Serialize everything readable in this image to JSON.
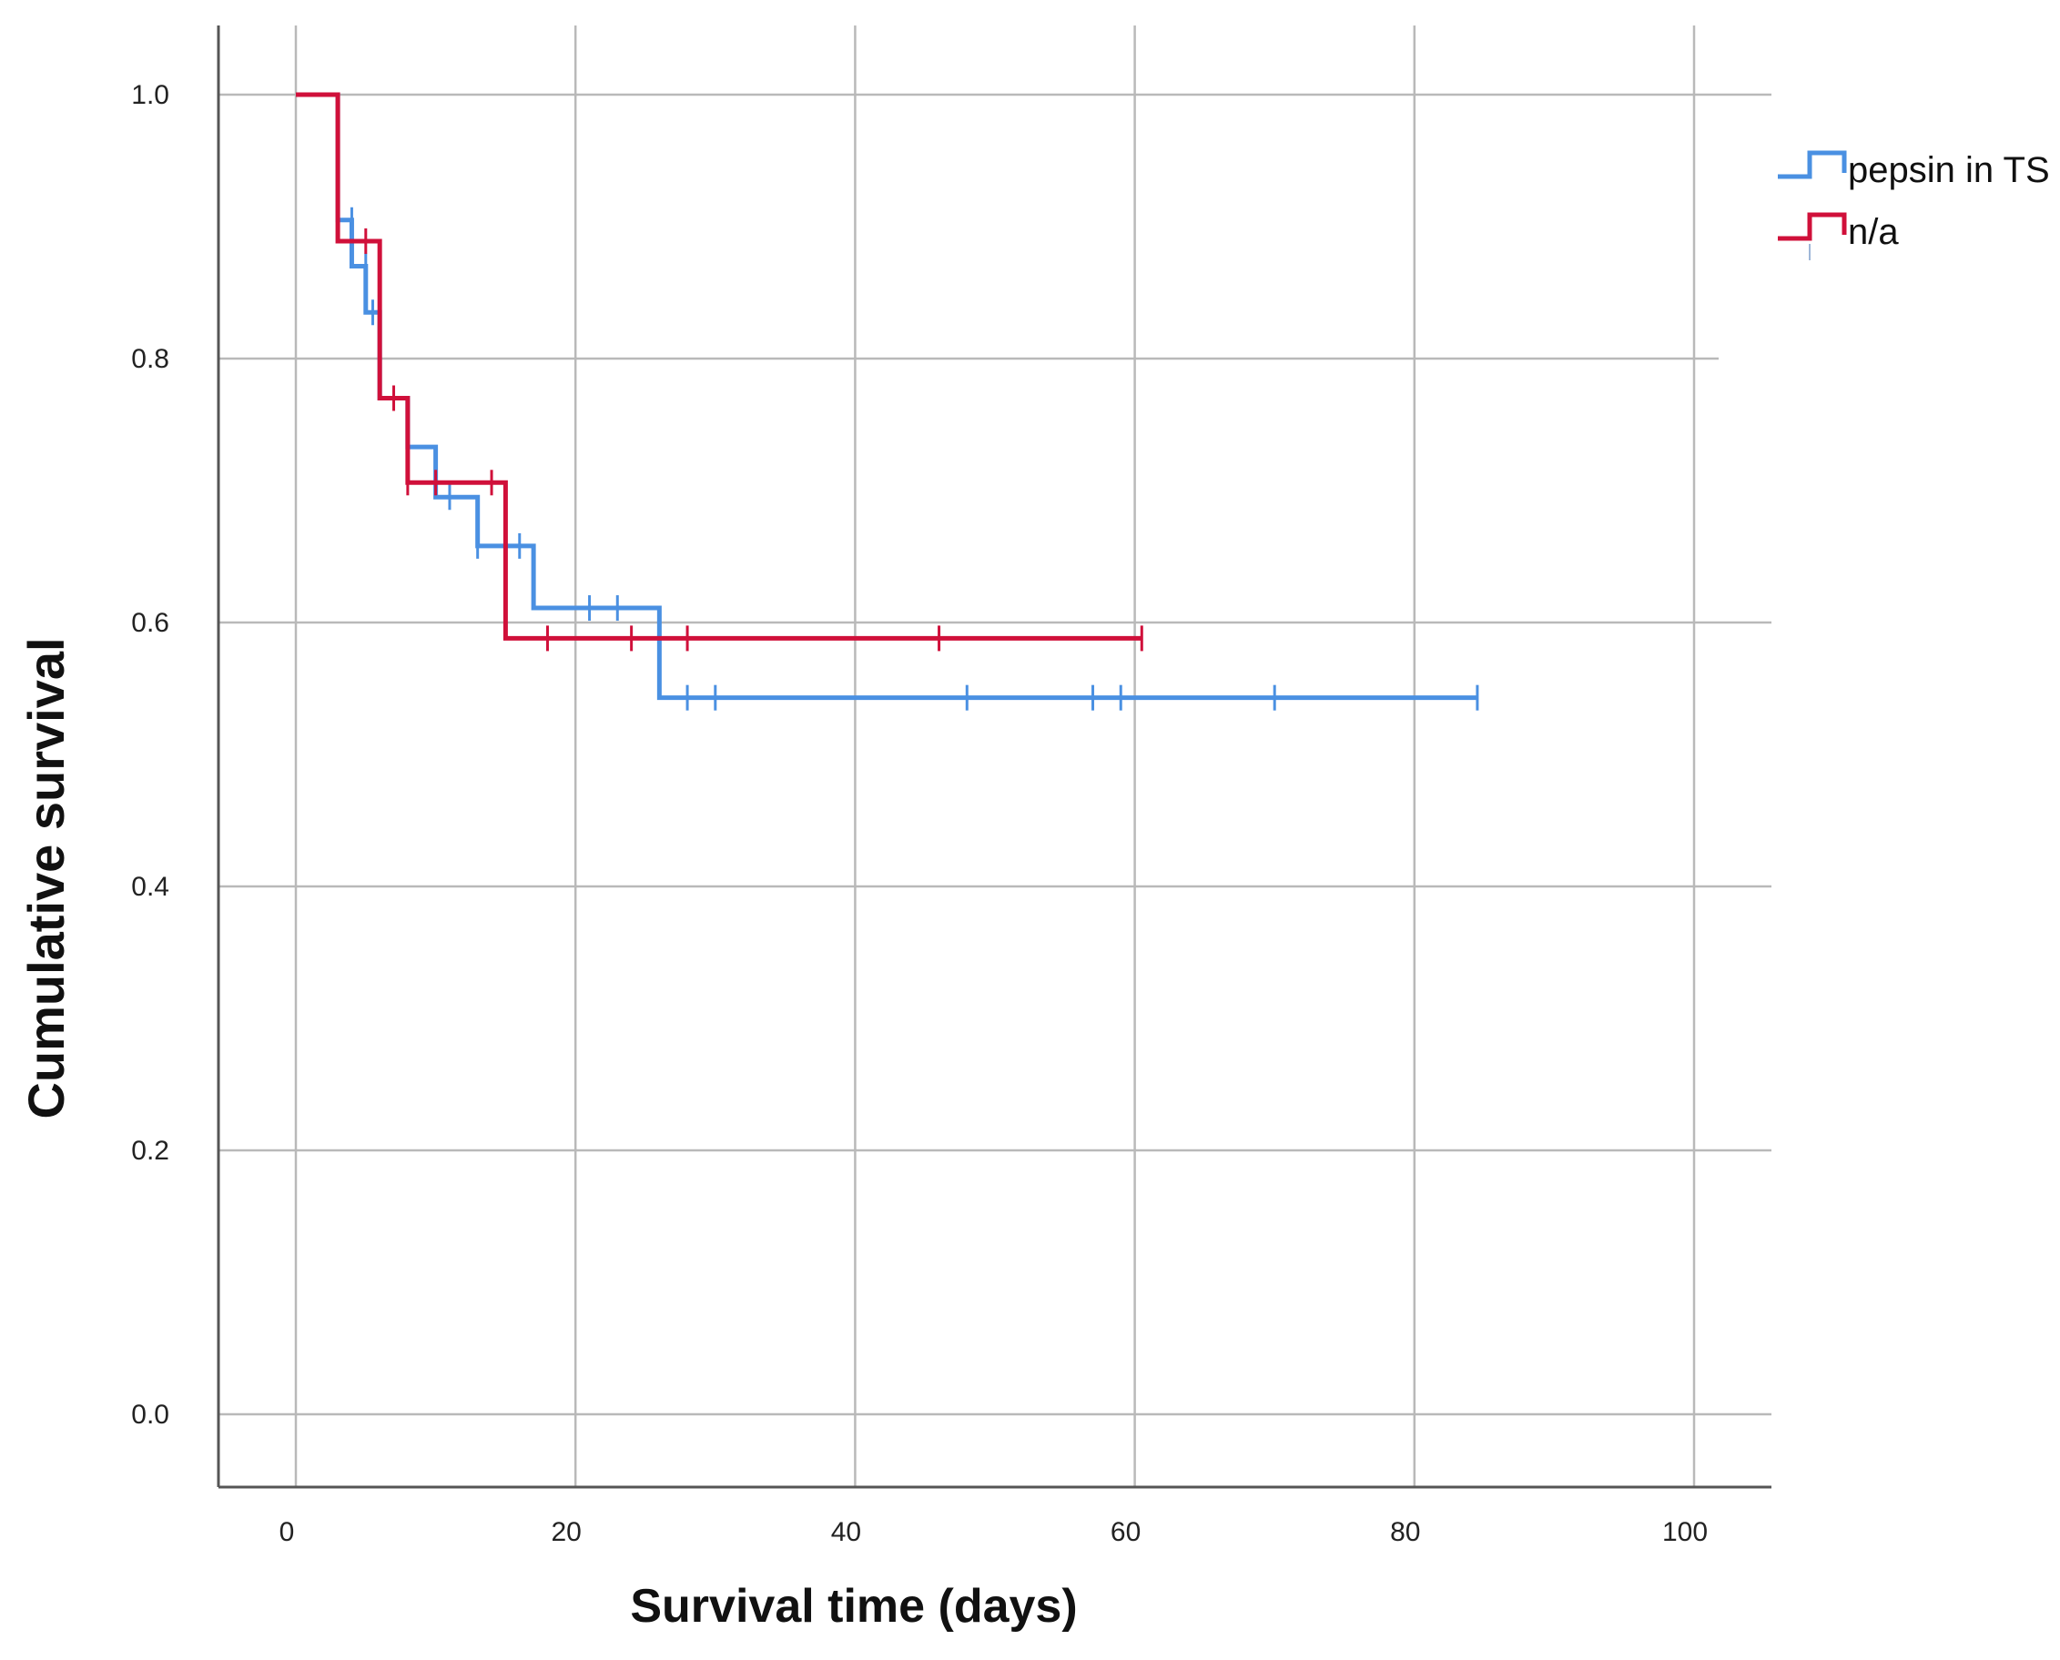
{
  "chart_data": {
    "type": "line",
    "subtype": "kaplan-meier step",
    "title": "",
    "xlabel": "Survival time (days)",
    "ylabel": "Cumulative survival",
    "xlim": [
      -5,
      106
    ],
    "ylim": [
      -0.05,
      1.05
    ],
    "xticks": [
      0,
      20,
      40,
      60,
      80,
      100
    ],
    "yticks": [
      0.0,
      0.2,
      0.4,
      0.6,
      0.8,
      1.0
    ],
    "xtick_labels": [
      "0",
      "20",
      "40",
      "60",
      "80",
      "100"
    ],
    "ytick_labels": [
      "0.0",
      "0.2",
      "0.4",
      "0.6",
      "0.8",
      "1.0"
    ],
    "grid": true,
    "legend": "top-right",
    "series": [
      {
        "name": "pepsin in TS",
        "color": "#4a90e2",
        "steps": [
          {
            "x": 0,
            "y": 1.0
          },
          {
            "x": 3,
            "y": 0.905
          },
          {
            "x": 4,
            "y": 0.87
          },
          {
            "x": 5,
            "y": 0.835
          },
          {
            "x": 6,
            "y": 0.77
          },
          {
            "x": 8,
            "y": 0.733
          },
          {
            "x": 10,
            "y": 0.695
          },
          {
            "x": 13,
            "y": 0.658
          },
          {
            "x": 17,
            "y": 0.611
          },
          {
            "x": 26,
            "y": 0.543
          }
        ],
        "end_x": 84.5,
        "censored": [
          {
            "x": 4,
            "y": 0.905
          },
          {
            "x": 5,
            "y": 0.87
          },
          {
            "x": 5.5,
            "y": 0.835
          },
          {
            "x": 11,
            "y": 0.695
          },
          {
            "x": 13,
            "y": 0.658
          },
          {
            "x": 16,
            "y": 0.658
          },
          {
            "x": 21,
            "y": 0.611
          },
          {
            "x": 23,
            "y": 0.611
          },
          {
            "x": 28,
            "y": 0.543
          },
          {
            "x": 30,
            "y": 0.543
          },
          {
            "x": 48,
            "y": 0.543
          },
          {
            "x": 57,
            "y": 0.543
          },
          {
            "x": 59,
            "y": 0.543
          },
          {
            "x": 70,
            "y": 0.543
          },
          {
            "x": 84.5,
            "y": 0.543
          }
        ]
      },
      {
        "name": "n/a",
        "color": "#d0103a",
        "steps": [
          {
            "x": 0,
            "y": 1.0
          },
          {
            "x": 3,
            "y": 0.889
          },
          {
            "x": 6,
            "y": 0.77
          },
          {
            "x": 8,
            "y": 0.706
          },
          {
            "x": 15,
            "y": 0.588
          }
        ],
        "end_x": 60.5,
        "censored": [
          {
            "x": 5,
            "y": 0.889
          },
          {
            "x": 7,
            "y": 0.77
          },
          {
            "x": 8,
            "y": 0.706
          },
          {
            "x": 10,
            "y": 0.706
          },
          {
            "x": 14,
            "y": 0.706
          },
          {
            "x": 18,
            "y": 0.588
          },
          {
            "x": 24,
            "y": 0.588
          },
          {
            "x": 28,
            "y": 0.588
          },
          {
            "x": 46,
            "y": 0.588
          },
          {
            "x": 60.5,
            "y": 0.588
          }
        ]
      }
    ]
  }
}
